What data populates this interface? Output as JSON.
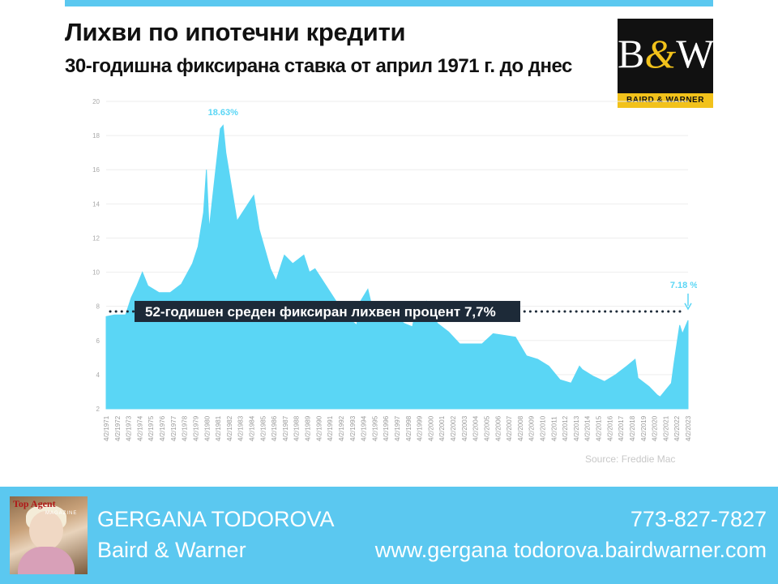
{
  "header": {
    "title": "Лихви по ипотечни кредити",
    "subtitle": "30-годишна фиксирана ставка от април 1971 г. до днес"
  },
  "logo": {
    "mark_b": "B",
    "mark_amp": "&",
    "mark_w": "W",
    "name": "BAIRD & WARNER",
    "colors": {
      "background": "#111111",
      "accent": "#f2c21b"
    }
  },
  "chart_data": {
    "type": "area",
    "color": "#5ad6f5",
    "ylim": [
      2,
      20
    ],
    "yticks": [
      2,
      4,
      6,
      8,
      10,
      12,
      14,
      16,
      18,
      20
    ],
    "grid": true,
    "x": [
      1971.25,
      1972,
      1973,
      1973.5,
      1974,
      1974.5,
      1975,
      1976,
      1977,
      1978,
      1979,
      1979.5,
      1980,
      1980.25,
      1980.5,
      1980.75,
      1981,
      1981.5,
      1981.75,
      1982,
      1982.5,
      1983,
      1983.5,
      1984,
      1984.5,
      1985,
      1986,
      1986.5,
      1987,
      1987.25,
      1988,
      1989,
      1989.5,
      1990,
      1991,
      1992,
      1993,
      1993.75,
      1994,
      1994.75,
      1995,
      1996,
      1997,
      1998,
      1998.75,
      1999,
      2000,
      2001,
      2002,
      2003,
      2004,
      2005,
      2006,
      2007,
      2008,
      2009,
      2010,
      2011,
      2012,
      2013,
      2013.75,
      2014,
      2015,
      2016,
      2017,
      2018,
      2018.75,
      2019,
      2020,
      2020.75,
      2021,
      2021.5,
      2022,
      2022.25,
      2022.75,
      2023,
      2023.25,
      2023.5
    ],
    "y": [
      7.4,
      7.5,
      7.5,
      8.5,
      9.2,
      10,
      9.2,
      8.8,
      8.8,
      9.3,
      10.5,
      11.5,
      13.5,
      16,
      12.5,
      14,
      15.5,
      18.4,
      18.6,
      17,
      15,
      13,
      13.5,
      14,
      14.5,
      12.5,
      10.2,
      9.5,
      10.5,
      11,
      10.5,
      11,
      10,
      10.2,
      9.2,
      8.2,
      7.3,
      6.9,
      8.2,
      9,
      8.3,
      7.8,
      7.5,
      7.0,
      6.8,
      7.6,
      8.3,
      7,
      6.5,
      5.8,
      5.8,
      5.8,
      6.4,
      6.3,
      6.2,
      5.1,
      4.9,
      4.5,
      3.7,
      3.5,
      4.5,
      4.3,
      3.9,
      3.6,
      4,
      4.5,
      4.9,
      3.8,
      3.3,
      2.8,
      2.7,
      3.1,
      3.5,
      4.7,
      6.9,
      6.4,
      6.8,
      7.18
    ],
    "categories": [
      "4/2/1971",
      "4/2/1972",
      "4/2/1973",
      "4/2/1974",
      "4/2/1975",
      "4/2/1976",
      "4/2/1977",
      "4/2/1978",
      "4/2/1979",
      "4/2/1980",
      "4/2/1981",
      "4/2/1982",
      "4/2/1983",
      "4/2/1984",
      "4/2/1985",
      "4/2/1986",
      "4/2/1987",
      "4/2/1988",
      "4/2/1989",
      "4/2/1990",
      "4/2/1991",
      "4/2/1992",
      "4/2/1993",
      "4/2/1994",
      "4/2/1995",
      "4/2/1996",
      "4/2/1997",
      "4/2/1998",
      "4/2/1999",
      "4/2/2000",
      "4/2/2001",
      "4/2/2002",
      "4/2/2003",
      "4/2/2004",
      "4/2/2005",
      "4/2/2006",
      "4/2/2007",
      "4/2/2008",
      "4/2/2009",
      "4/2/2010",
      "4/2/2011",
      "4/2/2012",
      "4/2/2013",
      "4/2/2014",
      "4/2/2015",
      "4/2/2016",
      "4/2/2017",
      "4/2/2018",
      "4/2/2019",
      "4/2/2020",
      "4/2/2021",
      "4/2/2022",
      "4/2/2023"
    ],
    "average_line": {
      "value": 7.7,
      "label": "52-годишен среден фиксиран лихвен процент 7,7%"
    },
    "annotations": [
      {
        "x": 1981.75,
        "y": 18.63,
        "label": "18.63%"
      },
      {
        "x": 2023.5,
        "y": 7.18,
        "label": "7.18 %"
      }
    ],
    "source": "Source: Freddie Mac"
  },
  "footer": {
    "name": "GERGANA TODOROVA",
    "company": "Baird & Warner",
    "phone": "773-827-7827",
    "website": "www.gergana todorova.bairdwarner.com",
    "photo_magazine": "Top Agent",
    "photo_magazine_sub": "MAGAZINE",
    "color": "#5bc8f0"
  }
}
